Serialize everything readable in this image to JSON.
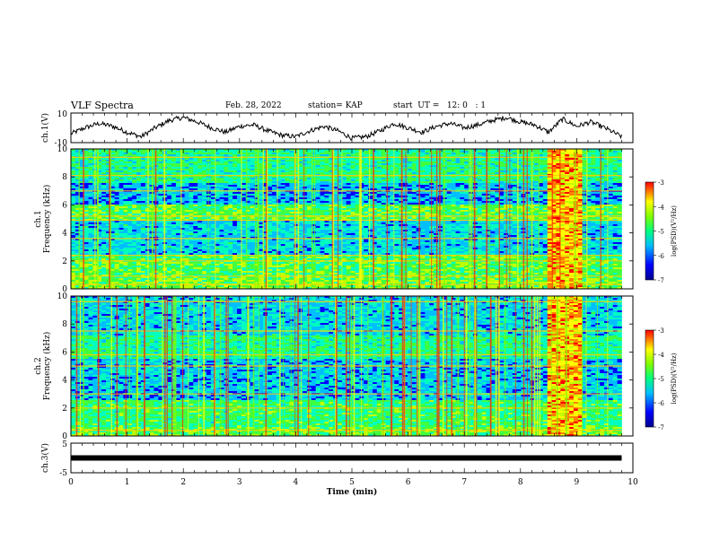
{
  "header": {
    "title": "VLF Spectra",
    "date": "Feb. 28, 2022",
    "station": "station= KAP",
    "start_ut": "start  UT =   12: 0   : 1"
  },
  "chart_data": [
    {
      "type": "line",
      "ylabel": "ch.1(V)",
      "ylim": [
        -10,
        10
      ],
      "yticks": [
        "10",
        "-10"
      ],
      "xlim": [
        0,
        10
      ],
      "color": "#000000",
      "x": [
        0.0,
        0.25,
        0.5,
        0.75,
        1.0,
        1.25,
        1.5,
        1.75,
        2.0,
        2.25,
        2.5,
        2.75,
        3.0,
        3.25,
        3.5,
        3.75,
        4.0,
        4.25,
        4.5,
        4.75,
        5.0,
        5.25,
        5.5,
        5.75,
        6.0,
        6.25,
        6.5,
        6.75,
        7.0,
        7.25,
        7.5,
        7.75,
        8.0,
        8.25,
        8.5,
        8.75,
        9.0,
        9.25,
        9.5,
        9.8
      ],
      "y": [
        -4,
        0,
        3,
        1,
        -3,
        -6,
        0,
        5,
        7,
        4,
        0,
        -3,
        1,
        2,
        -2,
        -5,
        -6,
        -2,
        1,
        -2,
        -7,
        -6,
        -2,
        3,
        0,
        -3,
        1,
        3,
        0,
        2,
        5,
        7,
        4,
        2,
        -3,
        6,
        1,
        4,
        0,
        -6
      ]
    },
    {
      "type": "heatmap",
      "ylabel": "ch.1 Frequency (kHz)",
      "ylim": [
        0,
        10
      ],
      "yticks": [
        "10",
        "8",
        "6",
        "4",
        "2",
        "0"
      ],
      "colorbar_label": "log(PSD)(V²/Hz)",
      "colorbar_ticks": [
        "-3",
        "-4",
        "-5",
        "-6",
        "-7"
      ],
      "colorbar_range": [
        -7,
        -3
      ],
      "burst_interval_min": [
        8.45,
        9.1
      ]
    },
    {
      "type": "heatmap",
      "ylabel": "ch.2 Frequency (kHz)",
      "ylim": [
        0,
        10
      ],
      "yticks": [
        "10",
        "8",
        "6",
        "4",
        "2",
        "0"
      ],
      "colorbar_label": "log(PSD)(V²/Hz)",
      "colorbar_ticks": [
        "-3",
        "-4",
        "-5",
        "-6",
        "-7"
      ],
      "colorbar_range": [
        -7,
        -3
      ],
      "burst_interval_min": [
        8.45,
        9.1
      ]
    },
    {
      "type": "line",
      "ylabel": "ch.3(V)",
      "ylim": [
        -5,
        5
      ],
      "yticks": [
        "5",
        "-5"
      ],
      "xlim": [
        0,
        10
      ],
      "color": "#000000",
      "x": [
        0,
        9.8
      ],
      "y": [
        0,
        0
      ]
    }
  ],
  "xaxis": {
    "label": "Time  (min)",
    "ticks": [
      "0",
      "1",
      "2",
      "3",
      "4",
      "5",
      "6",
      "7",
      "8",
      "9",
      "10"
    ],
    "xlim": [
      0,
      10
    ]
  },
  "colormap": [
    "#00008f",
    "#0000ff",
    "#00bfff",
    "#00ffbf",
    "#3fff3f",
    "#bfff00",
    "#ffff00",
    "#ff7f00",
    "#ff0000"
  ]
}
